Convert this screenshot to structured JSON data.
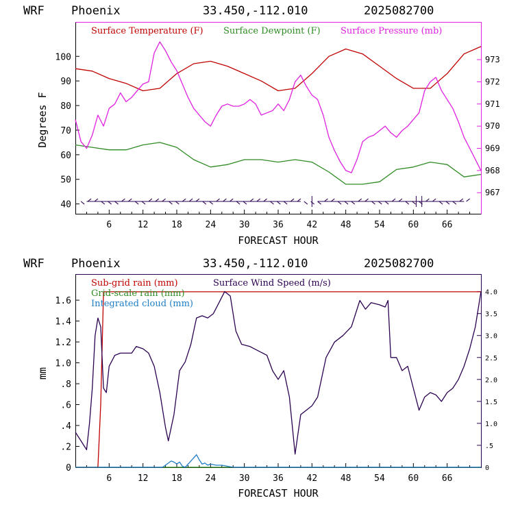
{
  "header": {
    "model": "WRF",
    "location": "Phoenix",
    "coords": "33.450,-112.010",
    "run": "2025082700"
  },
  "colors": {
    "temp": "#c00000",
    "dewpoint": "#2e8b22",
    "pressure": "#e020e0",
    "wind": "#2a0050",
    "subgrid": "#c00000",
    "gridscale": "#2e8b22",
    "cloud": "#1e7ec8",
    "wind_barb": "#2a0050"
  },
  "chart_data": [
    {
      "type": "line",
      "xlabel": "FORECAST HOUR",
      "ylabel": "Degrees F",
      "xlim": [
        0,
        72
      ],
      "ylim": [
        36,
        114
      ],
      "y2lim": [
        966.05,
        974.7
      ],
      "x_ticks": [
        "6",
        "12",
        "18",
        "24",
        "30",
        "36",
        "42",
        "48",
        "54",
        "60",
        "66"
      ],
      "y_ticks": [
        "40",
        "50",
        "60",
        "70",
        "80",
        "90",
        "100"
      ],
      "y2_ticks": [
        "967",
        "968",
        "969",
        "970",
        "971",
        "972",
        "973"
      ],
      "legend": [
        "Surface Temperature (F)",
        "Surface Dewpoint (F)",
        "Surface Pressure (mb)"
      ],
      "wind_barbs_row_y": 41,
      "series": [
        {
          "name": "Surface Temperature (F)",
          "axis": "left",
          "x": [
            0,
            3,
            6,
            9,
            12,
            15,
            18,
            21,
            24,
            27,
            30,
            33,
            36,
            39,
            42,
            45,
            48,
            51,
            54,
            57,
            60,
            63,
            66,
            69,
            72
          ],
          "values": [
            95,
            94,
            91,
            89,
            86,
            87,
            93,
            97,
            98,
            96,
            93,
            90,
            86,
            87,
            93,
            100,
            103,
            101,
            96,
            91,
            87,
            87,
            93,
            101,
            104
          ]
        },
        {
          "name": "Surface Dewpoint (F)",
          "axis": "left",
          "x": [
            0,
            3,
            6,
            9,
            12,
            15,
            18,
            21,
            24,
            27,
            30,
            33,
            36,
            39,
            42,
            45,
            48,
            51,
            54,
            57,
            60,
            63,
            66,
            69,
            72
          ],
          "values": [
            64,
            63,
            62,
            62,
            64,
            65,
            63,
            58,
            55,
            56,
            58,
            58,
            57,
            58,
            57,
            53,
            48,
            48,
            49,
            54,
            55,
            57,
            56,
            51,
            52
          ]
        },
        {
          "name": "Surface Pressure (mb)",
          "axis": "right",
          "x": [
            0,
            1,
            2,
            3,
            4,
            5,
            6,
            7,
            8,
            9,
            10,
            11,
            12,
            13,
            14,
            15,
            16,
            17,
            18,
            19,
            20,
            21,
            22,
            23,
            24,
            25,
            26,
            27,
            28,
            29,
            30,
            31,
            32,
            33,
            34,
            35,
            36,
            37,
            38,
            39,
            40,
            41,
            42,
            43,
            44,
            45,
            46,
            47,
            48,
            49,
            50,
            51,
            52,
            53,
            54,
            55,
            56,
            57,
            58,
            59,
            60,
            61,
            62,
            63,
            64,
            65,
            66,
            67,
            68,
            69,
            70,
            71,
            72
          ],
          "values": [
            970.3,
            969.3,
            969.0,
            969.6,
            970.5,
            970.0,
            970.8,
            971.0,
            971.5,
            971.1,
            971.3,
            971.6,
            971.9,
            972.0,
            973.3,
            973.8,
            973.4,
            972.9,
            972.5,
            971.9,
            971.3,
            970.8,
            970.5,
            970.2,
            970.0,
            970.5,
            970.9,
            971.0,
            970.9,
            970.9,
            971.0,
            971.2,
            971.0,
            970.5,
            970.6,
            970.7,
            971.0,
            970.7,
            971.2,
            972.0,
            972.3,
            971.8,
            971.4,
            971.2,
            970.5,
            969.5,
            968.9,
            968.4,
            968.0,
            967.9,
            968.5,
            969.3,
            969.5,
            969.6,
            969.8,
            970.0,
            969.7,
            969.5,
            969.8,
            970.0,
            970.3,
            970.6,
            971.6,
            972.0,
            972.2,
            971.6,
            971.2,
            970.8,
            970.2,
            969.5,
            969.0,
            968.5,
            968.0
          ]
        }
      ]
    },
    {
      "type": "line",
      "xlabel": "FORECAST HOUR",
      "ylabel": "mm",
      "xlim": [
        0,
        72
      ],
      "ylim": [
        0,
        1.85
      ],
      "y2lim": [
        0,
        4.4
      ],
      "x_ticks": [
        "6",
        "12",
        "18",
        "24",
        "30",
        "36",
        "42",
        "48",
        "54",
        "60",
        "66"
      ],
      "y_ticks": [
        "0",
        ".2",
        ".4",
        ".6",
        ".8",
        "1.0",
        "1.2",
        "1.4",
        "1.6"
      ],
      "y2_ticks": [
        "0",
        ".5",
        "1.0",
        "1.5",
        "2.0",
        "2.5",
        "3.0",
        "3.5",
        "4.0"
      ],
      "legend": [
        "Sub-grid rain (mm)",
        "Grid-scale rain (mm)",
        "Integrated cloud (mm)",
        "Surface Wind Speed (m/s)"
      ],
      "series": [
        {
          "name": "Sub-grid rain (mm)",
          "axis": "left",
          "x": [
            0,
            4.0,
            4.5,
            5.0,
            72
          ],
          "values": [
            0,
            0,
            0.6,
            1.68,
            1.68
          ]
        },
        {
          "name": "Grid-scale rain (mm)",
          "axis": "left",
          "x": [
            0,
            72
          ],
          "values": [
            0,
            0
          ]
        },
        {
          "name": "Integrated cloud (mm)",
          "axis": "left",
          "x": [
            0,
            15.5,
            16.5,
            17.0,
            17.5,
            18.0,
            18.5,
            19.0,
            19.5,
            20.5,
            21.0,
            21.5,
            22.0,
            22.5,
            23.0,
            23.5,
            24.0,
            25.0,
            26.0,
            27.0,
            28.0,
            72
          ],
          "values": [
            0,
            0,
            0.04,
            0.06,
            0.05,
            0.03,
            0.05,
            0.01,
            0.0,
            0.06,
            0.09,
            0.12,
            0.07,
            0.03,
            0.04,
            0.02,
            0.03,
            0.02,
            0.02,
            0.01,
            0.0,
            0
          ]
        },
        {
          "name": "Surface Wind Speed (m/s)",
          "axis": "right",
          "x": [
            0,
            0.5,
            1,
            1.5,
            2,
            2.5,
            3,
            3.5,
            4,
            4.5,
            5,
            5.5,
            6,
            7,
            8,
            9,
            10,
            10.8,
            12,
            13,
            14,
            15,
            16,
            16.5,
            17.5,
            18.5,
            19.5,
            20.5,
            21.5,
            22.5,
            23.5,
            24.5,
            25.5,
            26.5,
            27.5,
            28.5,
            29.5,
            31,
            32.5,
            34,
            35,
            36,
            37,
            38,
            39,
            40,
            41,
            42,
            43,
            44.5,
            46,
            47.5,
            49,
            50.5,
            51.5,
            52.5,
            54,
            55,
            55.5,
            56,
            57,
            58,
            59,
            60,
            61,
            62,
            63,
            64,
            65,
            66,
            67,
            68,
            69,
            70,
            71,
            72
          ],
          "values": [
            0.8,
            0.7,
            0.6,
            0.5,
            0.4,
            1.0,
            1.8,
            3.0,
            3.4,
            3.2,
            1.8,
            1.7,
            2.3,
            2.55,
            2.6,
            2.6,
            2.6,
            2.75,
            2.7,
            2.6,
            2.3,
            1.7,
            0.9,
            0.6,
            1.2,
            2.2,
            2.4,
            2.8,
            3.4,
            3.45,
            3.4,
            3.5,
            3.75,
            4.0,
            3.9,
            3.1,
            2.8,
            2.75,
            2.65,
            2.55,
            2.2,
            2.0,
            2.2,
            1.6,
            0.3,
            1.2,
            1.3,
            1.4,
            1.6,
            2.5,
            2.85,
            3.0,
            3.2,
            3.8,
            3.6,
            3.75,
            3.7,
            3.65,
            3.8,
            2.5,
            2.5,
            2.2,
            2.3,
            1.8,
            1.3,
            1.6,
            1.7,
            1.65,
            1.5,
            1.7,
            1.8,
            2.0,
            2.3,
            2.7,
            3.2,
            4.0
          ]
        }
      ]
    }
  ]
}
